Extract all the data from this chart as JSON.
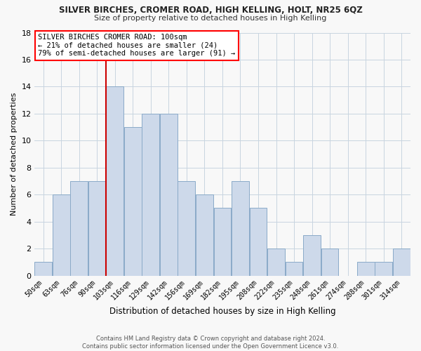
{
  "title": "SILVER BIRCHES, CROMER ROAD, HIGH KELLING, HOLT, NR25 6QZ",
  "subtitle": "Size of property relative to detached houses in High Kelling",
  "xlabel": "Distribution of detached houses by size in High Kelling",
  "ylabel": "Number of detached properties",
  "categories": [
    "50sqm",
    "63sqm",
    "76sqm",
    "90sqm",
    "103sqm",
    "116sqm",
    "129sqm",
    "142sqm",
    "156sqm",
    "169sqm",
    "182sqm",
    "195sqm",
    "208sqm",
    "222sqm",
    "235sqm",
    "248sqm",
    "261sqm",
    "274sqm",
    "288sqm",
    "301sqm",
    "314sqm"
  ],
  "values": [
    1,
    6,
    7,
    7,
    14,
    11,
    12,
    12,
    7,
    6,
    5,
    7,
    5,
    2,
    1,
    3,
    2,
    0,
    1,
    1,
    2
  ],
  "bar_color": "#cdd9ea",
  "bar_edge_color": "#8aaac8",
  "highlight_index": 4,
  "highlight_color": "#cc0000",
  "ylim": [
    0,
    18
  ],
  "yticks": [
    0,
    2,
    4,
    6,
    8,
    10,
    12,
    14,
    16,
    18
  ],
  "annotation_box_text": "SILVER BIRCHES CROMER ROAD: 100sqm\n← 21% of detached houses are smaller (24)\n79% of semi-detached houses are larger (91) →",
  "footer_line1": "Contains HM Land Registry data © Crown copyright and database right 2024.",
  "footer_line2": "Contains public sector information licensed under the Open Government Licence v3.0.",
  "background_color": "#f8f8f8",
  "grid_color": "#c8d4e0"
}
